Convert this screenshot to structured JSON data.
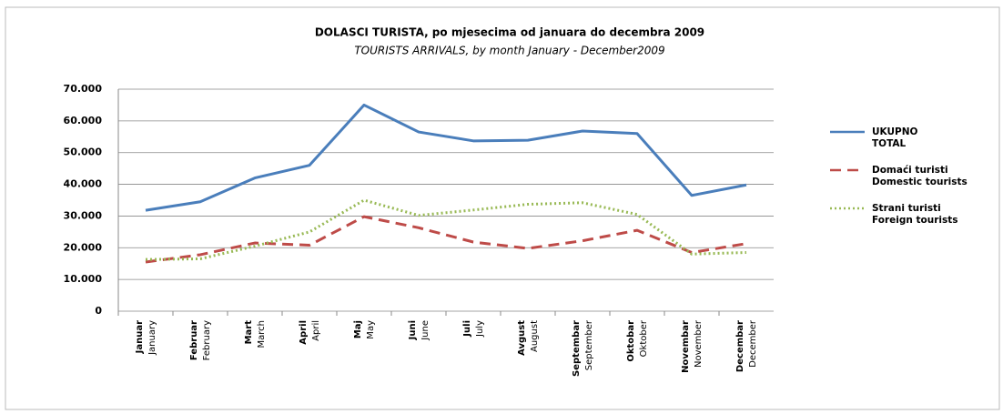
{
  "chart_data": {
    "type": "line",
    "title": "DOLASCI TURISTA, po mjesecima od januara do decembra  2009",
    "subtitle": "TOURISTS ARRIVALS, by month January - December2009",
    "categories": [
      [
        "Januar",
        "January"
      ],
      [
        "Februar",
        "February"
      ],
      [
        "Mart",
        "March"
      ],
      [
        "April",
        "April"
      ],
      [
        "Maj",
        "May"
      ],
      [
        "Juni",
        "June"
      ],
      [
        "Juli",
        "July"
      ],
      [
        "Avgust",
        "August"
      ],
      [
        "Septembar",
        "September"
      ],
      [
        "Oktobar",
        "Oktober"
      ],
      [
        "Novembar",
        "November"
      ],
      [
        "Decembar",
        "December"
      ]
    ],
    "series": [
      {
        "name": [
          "UKUPNO",
          "TOTAL"
        ],
        "color": "#4a7ebb",
        "dash": "none",
        "values": [
          31800,
          34500,
          42000,
          46000,
          65000,
          56500,
          53700,
          53900,
          56800,
          56000,
          36500,
          39800
        ]
      },
      {
        "name": [
          "Domaći turisti",
          "Domestic tourists"
        ],
        "color": "#be4b48",
        "dash": "12 7",
        "values": [
          15500,
          17800,
          21500,
          20800,
          29800,
          26300,
          21800,
          19800,
          22200,
          25500,
          18500,
          21300
        ]
      },
      {
        "name": [
          "Strani turisti",
          "Foreign tourists"
        ],
        "color": "#98b954",
        "dash": "2 3",
        "values": [
          16300,
          16500,
          20500,
          25000,
          35000,
          30200,
          31900,
          33700,
          34200,
          30500,
          18000,
          18500
        ]
      }
    ],
    "ylim": [
      0,
      70000
    ],
    "yticks": [
      0,
      {
        "value": 10000,
        "label": "10.000"
      },
      {
        "value": 20000,
        "label": "20.000"
      },
      {
        "value": 30000,
        "label": "30.000"
      },
      {
        "value": 40000,
        "label": "40.000"
      },
      {
        "value": 50000,
        "label": "50.000"
      },
      {
        "value": 60000,
        "label": "60.000"
      },
      {
        "value": 70000,
        "label": "70.000"
      }
    ],
    "grid": true,
    "legend": "right"
  }
}
